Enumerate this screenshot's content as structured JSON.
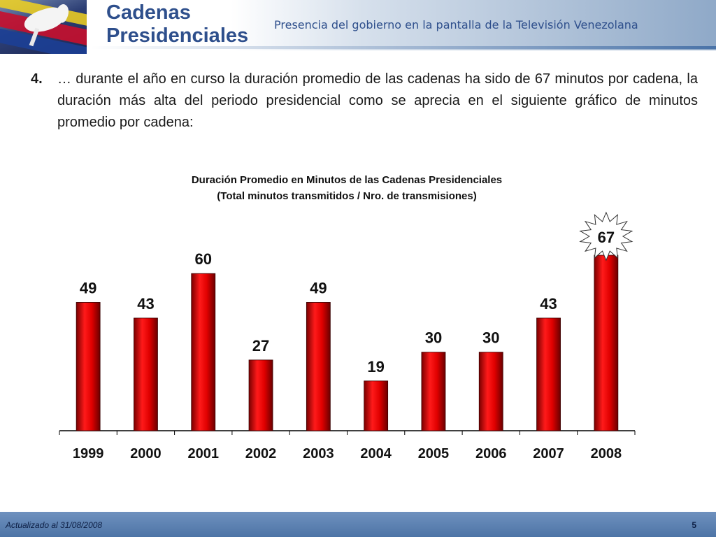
{
  "header": {
    "title_line1": "Cadenas",
    "title_line2": "Presidenciales",
    "subtitle": "Presencia del gobierno en la pantalla de la Televisión Venezolana"
  },
  "body": {
    "item_number": "4.",
    "text": "… durante el año en curso la duración promedio de las cadenas ha sido de 67 minutos por cadena, la duración más alta del periodo presidencial como se aprecia en el siguiente gráfico de minutos promedio por cadena:"
  },
  "chart_data": {
    "type": "bar",
    "title": "Duración Promedio en Minutos de las Cadenas Presidenciales",
    "subtitle": "(Total minutos transmitidos / Nro. de transmisiones)",
    "categories": [
      "1999",
      "2000",
      "2001",
      "2002",
      "2003",
      "2004",
      "2005",
      "2006",
      "2007",
      "2008"
    ],
    "values": [
      49,
      43,
      60,
      27,
      49,
      19,
      30,
      30,
      43,
      67
    ],
    "ylim": [
      0,
      67
    ],
    "highlight_category": "2008",
    "bar_color": "#e00000",
    "data_labels": true,
    "grid": false
  },
  "footer": {
    "date": "Actualizado al 31/08/2008",
    "page": "5"
  }
}
